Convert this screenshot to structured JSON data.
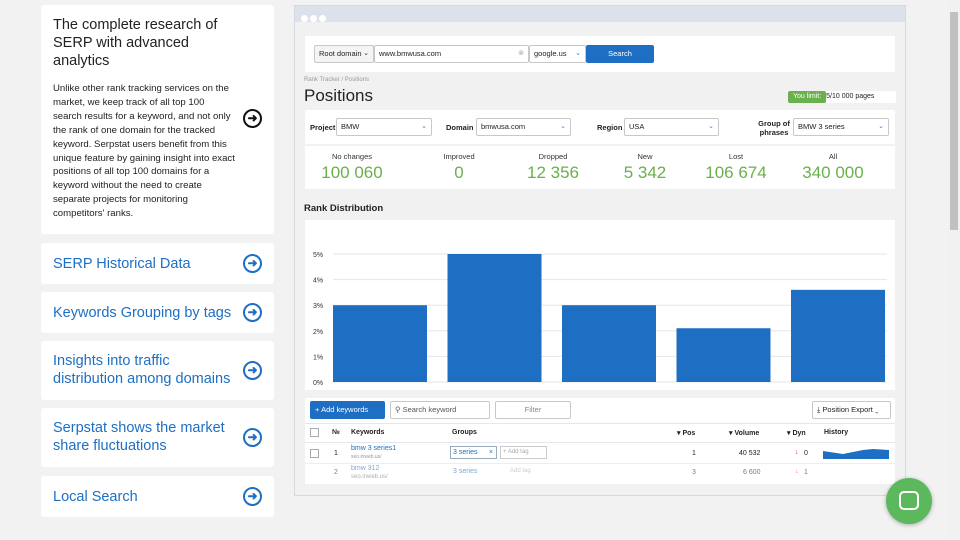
{
  "left": {
    "main_card": {
      "title": "The complete research of SERP with advanced analytics",
      "body": "Unlike other rank tracking services on the market, we keep track of all top 100 search results for a keyword, and not only the rank of one domain for the tracked keyword. Serpstat users benefit from this unique feature by gaining insight into exact positions of all top 100 domains for a keyword without the need to create separate projects for monitoring competitors' ranks."
    },
    "items": [
      {
        "label": "SERP Historical Data"
      },
      {
        "label": "Keywords Grouping by tags"
      },
      {
        "label": "Insights into traffic distribution among domains"
      },
      {
        "label": "Serpstat shows the market share fluctuations"
      },
      {
        "label": "Local Search"
      }
    ]
  },
  "app": {
    "search": {
      "type": "Root domain",
      "query": "www.bmwusa.com",
      "engine": "google.us",
      "button": "Search"
    },
    "breadcrumb": "Rank Tracker / Positions",
    "title": "Positions",
    "limit_badge": "You limit:",
    "limit_value": "5/10 000 pages",
    "filters": {
      "project_label": "Project",
      "project": "BMW",
      "domain_label": "Domain",
      "domain": "bmwusa.com",
      "region_label": "Region",
      "region": "USA",
      "group_label": "Group of phrases",
      "group": "BMW 3 series"
    },
    "stats": [
      {
        "label": "No changes",
        "value": "100 060"
      },
      {
        "label": "Improved",
        "value": "0"
      },
      {
        "label": "Dropped",
        "value": "12 356"
      },
      {
        "label": "New",
        "value": "5 342"
      },
      {
        "label": "Lost",
        "value": "106 674"
      },
      {
        "label": "All",
        "value": "340 000"
      }
    ],
    "chart_title": "Rank Distribution",
    "chart_data": {
      "type": "bar",
      "values": [
        3.0,
        5.0,
        3.0,
        2.1,
        3.6
      ],
      "yticks": [
        "0%",
        "1%",
        "2%",
        "3%",
        "4%",
        "5%"
      ],
      "ylim": [
        0,
        5.2
      ],
      "color": "#1e6fc3",
      "grid": true
    },
    "toolbar": {
      "add": "Add keywords",
      "search_placeholder": "Search keyword",
      "filter": "Filter",
      "export": "Position Export"
    },
    "table": {
      "headers": [
        "№",
        "Keywords",
        "Groups",
        "Pos",
        "Volume",
        "Dyn",
        "History"
      ],
      "rows": [
        {
          "n": "1",
          "kw": "bmw 3 series1",
          "url": "seo.inweb.us/",
          "tag": "3 series",
          "add_tag": "Add tag",
          "pos": "1",
          "vol": "40 532",
          "dyn": "0"
        },
        {
          "n": "2",
          "kw": "bmw 312",
          "url": "seo.inweb.us/",
          "tag": "3 series",
          "add_tag": "Add tag",
          "pos": "3",
          "vol": "6 600",
          "dyn": "1"
        }
      ]
    }
  },
  "colors": {
    "accent": "#1e6fc3",
    "green": "#6ab04c",
    "chat": "#5cb85c"
  }
}
